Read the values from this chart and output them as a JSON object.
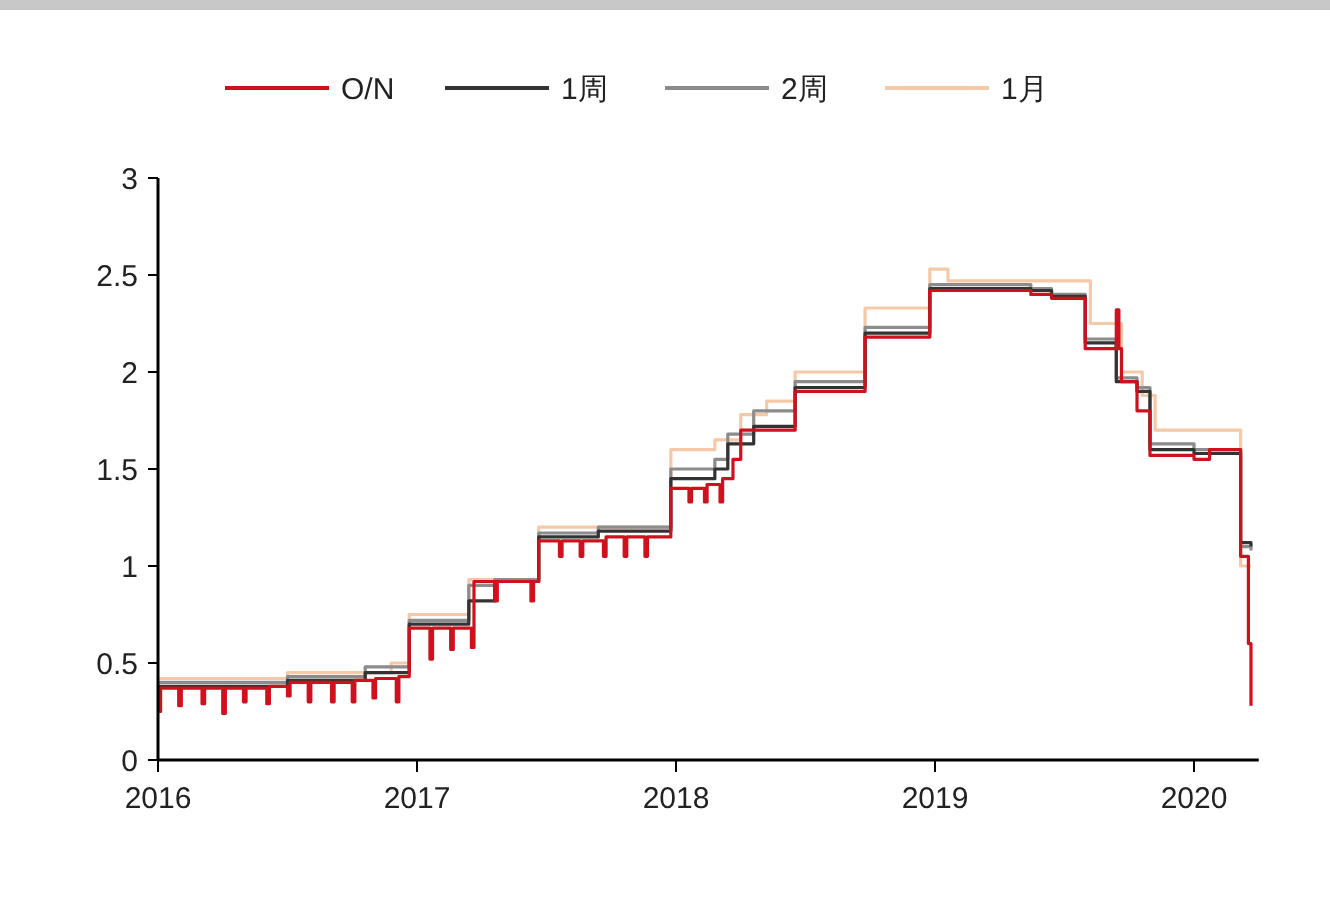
{
  "chart_data": {
    "type": "step",
    "xlim": [
      2016,
      2020.25
    ],
    "xticks": [
      2016,
      2017,
      2018,
      2019,
      2020
    ],
    "ylim": [
      0,
      3
    ],
    "yticks": [
      0,
      {
        "value": 0.5,
        "label": "0.5"
      },
      1,
      {
        "value": 1.5,
        "label": "1.5"
      },
      2,
      {
        "value": 2.5,
        "label": "2.5"
      },
      3
    ],
    "legend": "top",
    "grid": false,
    "line_style": "solid",
    "series": [
      {
        "name": "O/N",
        "color": "#d0101c",
        "x": [
          2016,
          2016.01,
          2016.08,
          2016.09,
          2016.17,
          2016.18,
          2016.25,
          2016.26,
          2016.33,
          2016.34,
          2016.42,
          2016.43,
          2016.5,
          2016.51,
          2016.58,
          2016.59,
          2016.67,
          2016.68,
          2016.75,
          2016.76,
          2016.83,
          2016.84,
          2016.92,
          2016.93,
          2016.97,
          2017.05,
          2017.06,
          2017.13,
          2017.14,
          2017.21,
          2017.22,
          2017.3,
          2017.31,
          2017.44,
          2017.45,
          2017.47,
          2017.55,
          2017.56,
          2017.63,
          2017.64,
          2017.72,
          2017.73,
          2017.8,
          2017.81,
          2017.88,
          2017.89,
          2017.98,
          2018.05,
          2018.06,
          2018.11,
          2018.12,
          2018.17,
          2018.18,
          2018.22,
          2018.25,
          2018.46,
          2018.73,
          2018.98,
          2019.37,
          2019.45,
          2019.58,
          2019.7,
          2019.71,
          2019.72,
          2019.78,
          2019.83,
          2020.0,
          2020.06,
          2020.18,
          2020.21,
          2020.22
        ],
        "values": [
          0.25,
          0.37,
          0.28,
          0.37,
          0.29,
          0.37,
          0.24,
          0.37,
          0.3,
          0.37,
          0.29,
          0.38,
          0.33,
          0.4,
          0.3,
          0.4,
          0.3,
          0.4,
          0.3,
          0.41,
          0.32,
          0.42,
          0.3,
          0.43,
          0.68,
          0.52,
          0.68,
          0.57,
          0.68,
          0.58,
          0.92,
          0.82,
          0.92,
          0.82,
          0.92,
          1.13,
          1.05,
          1.13,
          1.05,
          1.13,
          1.05,
          1.15,
          1.05,
          1.15,
          1.05,
          1.15,
          1.4,
          1.33,
          1.4,
          1.33,
          1.42,
          1.33,
          1.45,
          1.55,
          1.7,
          1.9,
          2.18,
          2.42,
          2.4,
          2.38,
          2.12,
          2.32,
          2.12,
          1.95,
          1.8,
          1.57,
          1.55,
          1.6,
          1.05,
          0.6,
          0.28
        ]
      },
      {
        "name": "1周",
        "color": "#333333",
        "x": [
          2016,
          2016.5,
          2016.8,
          2016.97,
          2017.2,
          2017.3,
          2017.47,
          2017.7,
          2017.98,
          2018.15,
          2018.2,
          2018.3,
          2018.46,
          2018.73,
          2018.98,
          2019.37,
          2019.45,
          2019.58,
          2019.7,
          2019.78,
          2019.83,
          2020.0,
          2020.18,
          2020.22
        ],
        "values": [
          0.38,
          0.41,
          0.45,
          0.7,
          0.82,
          0.92,
          1.15,
          1.18,
          1.45,
          1.5,
          1.63,
          1.72,
          1.92,
          2.2,
          2.43,
          2.42,
          2.39,
          2.15,
          1.95,
          1.9,
          1.6,
          1.58,
          1.12,
          1.1
        ]
      },
      {
        "name": "2周",
        "color": "#8c8c8c",
        "x": [
          2016,
          2016.5,
          2016.8,
          2016.97,
          2017.2,
          2017.3,
          2017.47,
          2017.7,
          2017.98,
          2018.15,
          2018.2,
          2018.3,
          2018.46,
          2018.73,
          2018.98,
          2019.37,
          2019.45,
          2019.58,
          2019.7,
          2019.78,
          2019.83,
          2020.0,
          2020.18,
          2020.22
        ],
        "values": [
          0.4,
          0.43,
          0.48,
          0.72,
          0.9,
          0.93,
          1.17,
          1.2,
          1.5,
          1.55,
          1.68,
          1.8,
          1.95,
          2.23,
          2.45,
          2.43,
          2.4,
          2.17,
          1.97,
          1.92,
          1.63,
          1.6,
          1.1,
          1.08
        ]
      },
      {
        "name": "1月",
        "color": "#f5c9a8",
        "x": [
          2016,
          2016.5,
          2016.9,
          2016.97,
          2017.2,
          2017.47,
          2017.98,
          2018.15,
          2018.25,
          2018.35,
          2018.46,
          2018.73,
          2018.98,
          2019.05,
          2019.6,
          2019.72,
          2019.8,
          2019.85,
          2020.18,
          2020.22
        ],
        "values": [
          0.42,
          0.45,
          0.5,
          0.75,
          0.93,
          1.2,
          1.6,
          1.65,
          1.78,
          1.85,
          2.0,
          2.33,
          2.53,
          2.47,
          2.25,
          2.0,
          1.88,
          1.7,
          1.0,
          1.0
        ]
      }
    ]
  }
}
